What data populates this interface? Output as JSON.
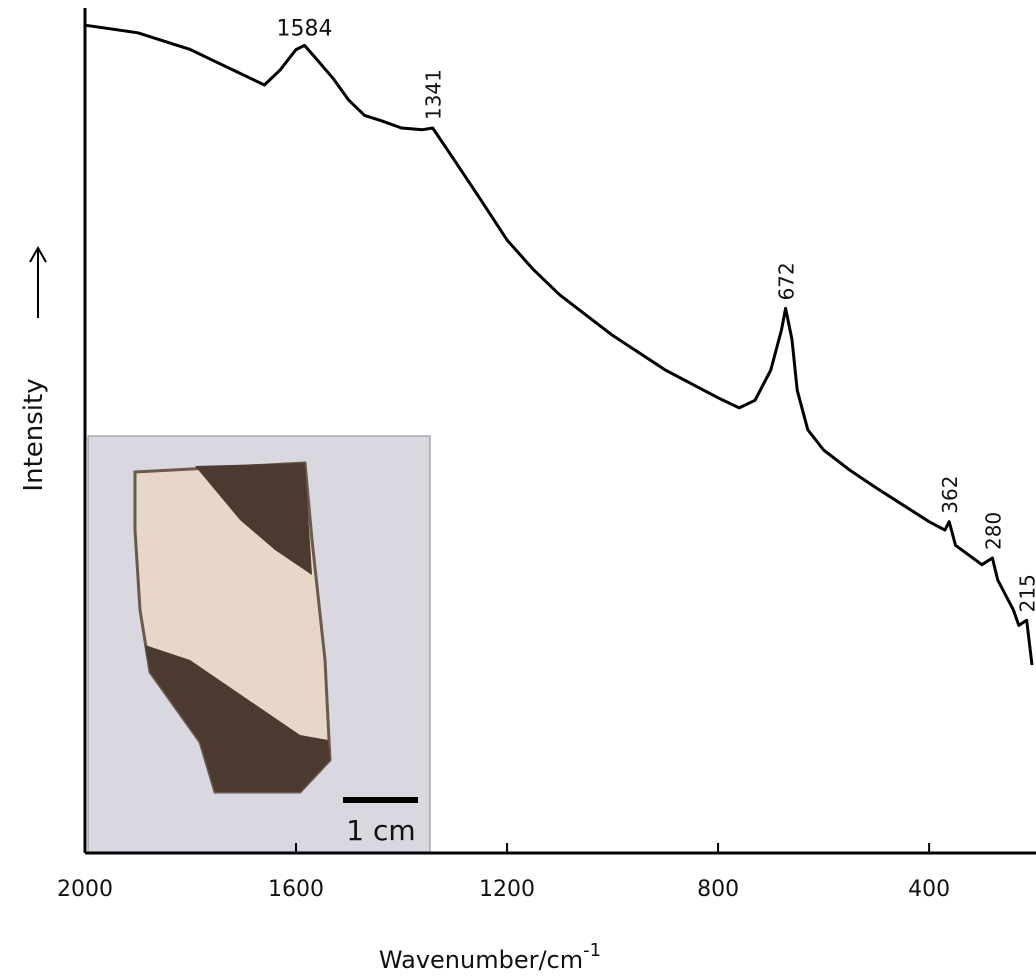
{
  "chart_data": {
    "type": "line",
    "xlabel": "Wavenumber/cm",
    "xlabel_sup": "-1",
    "ylabel": "Intensity",
    "x": [
      2000,
      1900,
      1800,
      1750,
      1700,
      1660,
      1630,
      1600,
      1584,
      1560,
      1530,
      1500,
      1470,
      1440,
      1400,
      1360,
      1341,
      1300,
      1250,
      1200,
      1150,
      1100,
      1000,
      900,
      800,
      760,
      730,
      700,
      680,
      672,
      660,
      650,
      630,
      600,
      550,
      500,
      450,
      400,
      370,
      362,
      350,
      300,
      280,
      270,
      240,
      230,
      215,
      205
    ],
    "values": [
      98.2,
      97.3,
      95.3,
      93.8,
      92.3,
      91.1,
      92.9,
      95.3,
      95.8,
      94.1,
      91.9,
      89.3,
      87.5,
      86.9,
      86.0,
      85.8,
      86.0,
      82.2,
      77.5,
      72.7,
      69.2,
      66.2,
      61.4,
      57.3,
      54.0,
      52.8,
      53.7,
      57.3,
      62.0,
      64.6,
      60.9,
      54.9,
      50.2,
      47.8,
      45.4,
      43.3,
      41.3,
      39.3,
      38.3,
      39.3,
      36.5,
      34.2,
      35.0,
      32.4,
      28.8,
      27.0,
      27.6,
      22.3
    ],
    "color": "#000000",
    "xlim": [
      2000,
      205
    ],
    "ylim": [
      0,
      100
    ],
    "xticks": [
      2000,
      1600,
      1200,
      800,
      400
    ],
    "peak_labels": [
      1584,
      1341,
      672,
      362,
      280,
      215
    ]
  },
  "inset": {
    "scale_label": "1 cm"
  }
}
